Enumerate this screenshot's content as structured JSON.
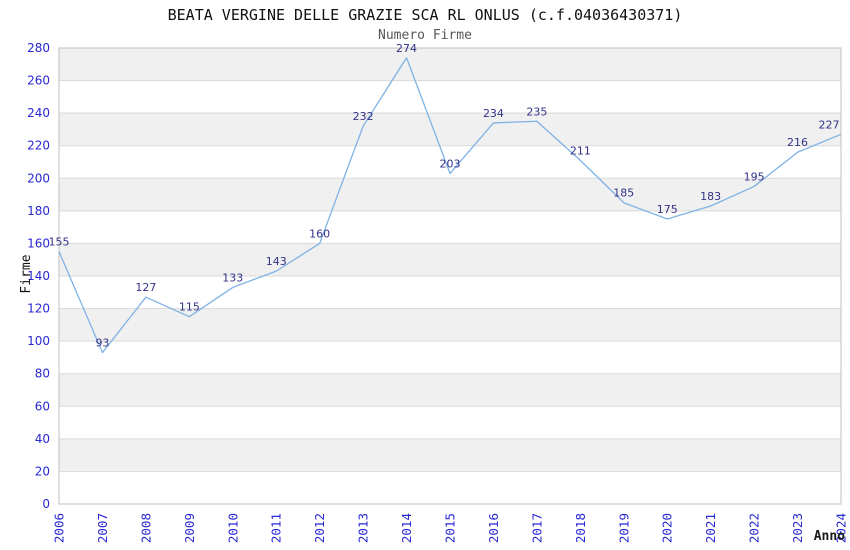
{
  "chart_data": {
    "type": "line",
    "title": "BEATA VERGINE DELLE GRAZIE SCA RL ONLUS (c.f.04036430371)",
    "subtitle": "Numero Firme",
    "xlabel": "Anno",
    "ylabel": "Firme",
    "x": [
      "2006",
      "2007",
      "2008",
      "2009",
      "2010",
      "2011",
      "2012",
      "2013",
      "2014",
      "2015",
      "2016",
      "2017",
      "2018",
      "2019",
      "2020",
      "2021",
      "2022",
      "2023",
      "2024"
    ],
    "series": [
      {
        "name": "Numero Firme",
        "values": [
          155,
          93,
          127,
          115,
          133,
          143,
          160,
          232,
          274,
          203,
          234,
          235,
          211,
          185,
          175,
          183,
          195,
          216,
          227
        ]
      }
    ],
    "ylim": [
      0,
      280
    ],
    "ytick_step": 20,
    "grid": true,
    "data_labels_visible": true,
    "legend": "none",
    "colors": {
      "line": "#7fb2e5",
      "tick_labels": "#2828d4",
      "data_labels": "#333388",
      "band_alt": "#f0f0f0",
      "gridline": "#d9d9d9",
      "plot_border": "#c0c0c0",
      "title": "#111111",
      "subtitle": "#575757",
      "axis_titles": "#111111"
    }
  }
}
